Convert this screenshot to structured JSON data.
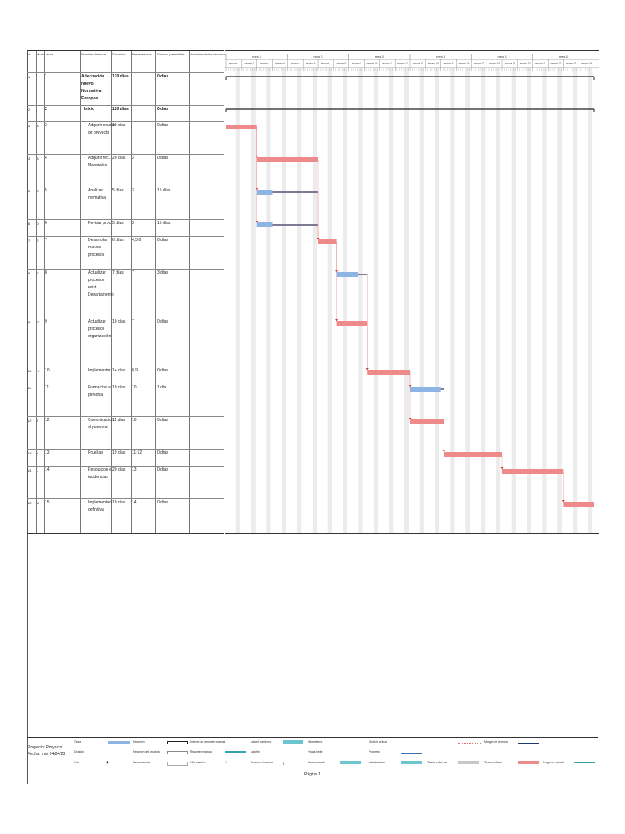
{
  "table": {
    "headers": [
      "Id",
      "Modo tarea",
      "Nombre de tarea",
      "Duración",
      "Predecesoras",
      "Demora permisible",
      "Nombres de los recursos"
    ],
    "rows": [
      {
        "id": "1",
        "wbs": "",
        "num": "1",
        "name": "Adecuación nuevo Normativa Europea",
        "duration": "120 días",
        "predecessors": "",
        "slack": "0 días",
        "bold": true
      },
      {
        "id": "2",
        "wbs": "",
        "num": "2",
        "name": "Inicio",
        "duration": "120 días",
        "predecessors": "",
        "slack": "0 días",
        "bold": true
      },
      {
        "id": "3",
        "wbs": "A",
        "num": "3",
        "name": "Adquirir equipo de proyecto",
        "duration": "10 días",
        "predecessors": "",
        "slack": "0 días",
        "bold": false
      },
      {
        "id": "4",
        "wbs": "B",
        "num": "4",
        "name": "Adquirir rec. Materiales",
        "duration": "20 días",
        "predecessors": "3",
        "slack": "0 días",
        "bold": false
      },
      {
        "id": "5",
        "wbs": "C",
        "num": "5",
        "name": "Analizar normativa",
        "duration": "5 días",
        "predecessors": "3",
        "slack": "15 días",
        "bold": false
      },
      {
        "id": "6",
        "wbs": "D",
        "num": "6",
        "name": "Revisar procesos",
        "duration": "5 días",
        "predecessors": "3",
        "slack": "15 días",
        "bold": false
      },
      {
        "id": "7",
        "wbs": "E",
        "num": "7",
        "name": "Desarrollar nuevos procesos",
        "duration": "6 días",
        "predecessors": "4,5,6",
        "slack": "0 días",
        "bold": false
      },
      {
        "id": "8",
        "wbs": "F",
        "num": "8",
        "name": "Actualizar procesos exist. Departamento",
        "duration": "7 días",
        "predecessors": "7",
        "slack": "3 días",
        "bold": false
      },
      {
        "id": "9",
        "wbs": "G",
        "num": "9",
        "name": "Actualizar procesos organización",
        "duration": "10 días",
        "predecessors": "7",
        "slack": "0 días",
        "bold": false
      },
      {
        "id": "10",
        "wbs": "H",
        "num": "10",
        "name": "Implementar",
        "duration": "14 días",
        "predecessors": "8,9",
        "slack": "0 días",
        "bold": false
      },
      {
        "id": "11",
        "wbs": "I",
        "num": "11",
        "name": "Formacion al personal",
        "duration": "10 días",
        "predecessors": "10",
        "slack": "1 día",
        "bold": false
      },
      {
        "id": "12",
        "wbs": "J",
        "num": "12",
        "name": "Comunicacion al personal",
        "duration": "11 días",
        "predecessors": "10",
        "slack": "0 días",
        "bold": false
      },
      {
        "id": "13",
        "wbs": "K",
        "num": "13",
        "name": "Pruebas",
        "duration": "19 días",
        "predecessors": "11;12",
        "slack": "0 días",
        "bold": false
      },
      {
        "id": "14",
        "wbs": "L",
        "num": "14",
        "name": "Resolucion e incidencias",
        "duration": "20 días",
        "predecessors": "13",
        "slack": "0 días",
        "bold": false
      },
      {
        "id": "15",
        "wbs": "M",
        "num": "15",
        "name": "Implementacion definitiva",
        "duration": "10 días",
        "predecessors": "14",
        "slack": "0 días",
        "bold": false
      }
    ]
  },
  "timescale": {
    "months": [
      "mes 1",
      "mes 2",
      "mes 3",
      "mes 4",
      "mes 5",
      "mes 6"
    ],
    "weeks": [
      "semana 1",
      "semana 2",
      "semana 3",
      "semana 4",
      "semana 5",
      "semana 6",
      "semana 7",
      "semana 8",
      "semana 9",
      "semana 10",
      "semana 11",
      "semana 12",
      "semana 13",
      "semana 14",
      "semana 15",
      "semana 16",
      "semana 17",
      "semana 18",
      "semana 19",
      "semana 20",
      "semana 21",
      "semana 22",
      "semana 23",
      "semana 24"
    ]
  },
  "chart_data": {
    "type": "gantt",
    "unit": "days",
    "range": [
      0,
      120
    ],
    "tasks": [
      {
        "id": 1,
        "start": 0,
        "end": 120,
        "kind": "summary"
      },
      {
        "id": 2,
        "start": 0,
        "end": 120,
        "kind": "summary"
      },
      {
        "id": 3,
        "start": 0,
        "end": 10,
        "kind": "critical"
      },
      {
        "id": 4,
        "start": 10,
        "end": 30,
        "kind": "critical"
      },
      {
        "id": 5,
        "start": 10,
        "end": 15,
        "kind": "task",
        "slack_end": 30
      },
      {
        "id": 6,
        "start": 10,
        "end": 15,
        "kind": "task",
        "slack_end": 30
      },
      {
        "id": 7,
        "start": 30,
        "end": 36,
        "kind": "critical"
      },
      {
        "id": 8,
        "start": 36,
        "end": 43,
        "kind": "task",
        "slack_end": 46
      },
      {
        "id": 9,
        "start": 36,
        "end": 46,
        "kind": "critical"
      },
      {
        "id": 10,
        "start": 46,
        "end": 60,
        "kind": "critical"
      },
      {
        "id": 11,
        "start": 60,
        "end": 70,
        "kind": "task",
        "slack_end": 71
      },
      {
        "id": 12,
        "start": 60,
        "end": 71,
        "kind": "critical"
      },
      {
        "id": 13,
        "start": 71,
        "end": 90,
        "kind": "critical"
      },
      {
        "id": 14,
        "start": 90,
        "end": 110,
        "kind": "critical"
      },
      {
        "id": 15,
        "start": 110,
        "end": 120,
        "kind": "critical"
      }
    ],
    "colors": {
      "critical": "#ee8a8a",
      "task": "#8db4e2",
      "slack": "#1f3b6e",
      "summary": "#222222",
      "link": "#e58a8a",
      "grid": "#ececec"
    }
  },
  "legend": {
    "project": "Proyecto: Proyecto1",
    "date": "Fecha: mar 04/04/23",
    "items": [
      [
        "Tarea",
        "Resumen",
        "Informe de resumen manual",
        "solo el comienzo",
        "Hito externo",
        "División crítica",
        "Margen de demora"
      ],
      [
        "División",
        "Resumen del proyecto",
        "Resumen manual",
        "solo fin",
        "Fecha límite",
        "Progreso"
      ],
      [
        "Hito",
        "Tarea inactiva",
        "Hito inactivo",
        "Resumen inactivo",
        "Tarea manual",
        "solo duración",
        "Tareas externas",
        "Tareas críticas",
        "Progreso manual"
      ]
    ]
  },
  "footer": "Página 1"
}
